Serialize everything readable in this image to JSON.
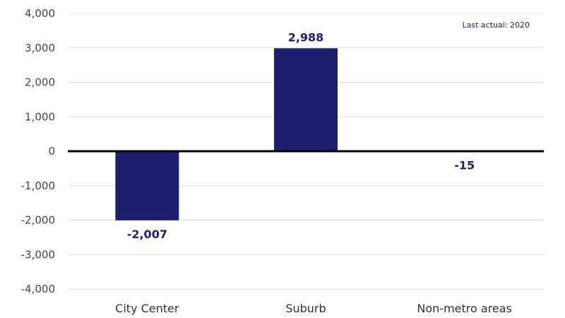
{
  "chart_data": {
    "type": "bar",
    "categories": [
      "City Center",
      "Suburb",
      "Non-metro areas"
    ],
    "values": [
      -2007,
      2988,
      -15
    ],
    "data_labels": [
      "-2,007",
      "2,988",
      "-15"
    ],
    "title": "",
    "xlabel": "",
    "ylabel": "",
    "ylim": [
      -4000,
      4000
    ],
    "yticks": [
      4000,
      3000,
      2000,
      1000,
      0,
      -1000,
      -2000,
      -3000,
      -4000
    ],
    "ytick_labels": [
      "4,000",
      "3,000",
      "2,000",
      "1,000",
      "0",
      "-1,000",
      "-2,000",
      "-3,000",
      "-4,000"
    ],
    "grid": true,
    "legend": "none",
    "annotation": "Last actual: 2020",
    "colors": {
      "bar": "#1c1f6e",
      "label": "#1c1f6e",
      "grid": "#d9d9d9",
      "zero_line": "#000000",
      "axis_text": "#444444"
    }
  }
}
